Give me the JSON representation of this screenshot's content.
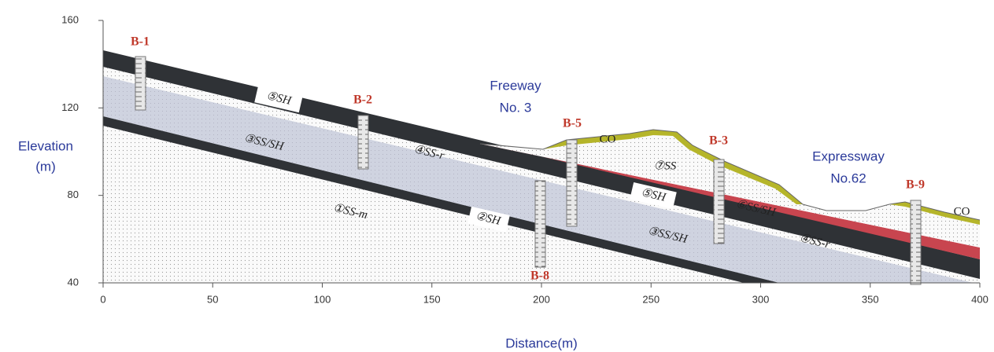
{
  "axes": {
    "x_label": "Distance(m)",
    "y_label_line1": "Elevation",
    "y_label_line2": "(m)",
    "x_ticks": [
      0,
      50,
      100,
      150,
      200,
      250,
      300,
      350,
      400
    ],
    "y_ticks": [
      40,
      80,
      120,
      160
    ]
  },
  "roads": [
    {
      "line1": "Freeway",
      "line2": "No. 3"
    },
    {
      "line1": "Expressway",
      "line2": "No.62"
    }
  ],
  "boreholes": [
    "B-1",
    "B-2",
    "B-5",
    "B-8",
    "B-3",
    "B-9"
  ],
  "layers": [
    "⑤SH",
    "③SS/SH",
    "④SS-r",
    "①SS-m",
    "②SH",
    "⑤SH",
    "⑥SS/SH",
    "⑦SS",
    "③SS/SH",
    "④SS-r",
    "CO",
    "CO"
  ]
}
